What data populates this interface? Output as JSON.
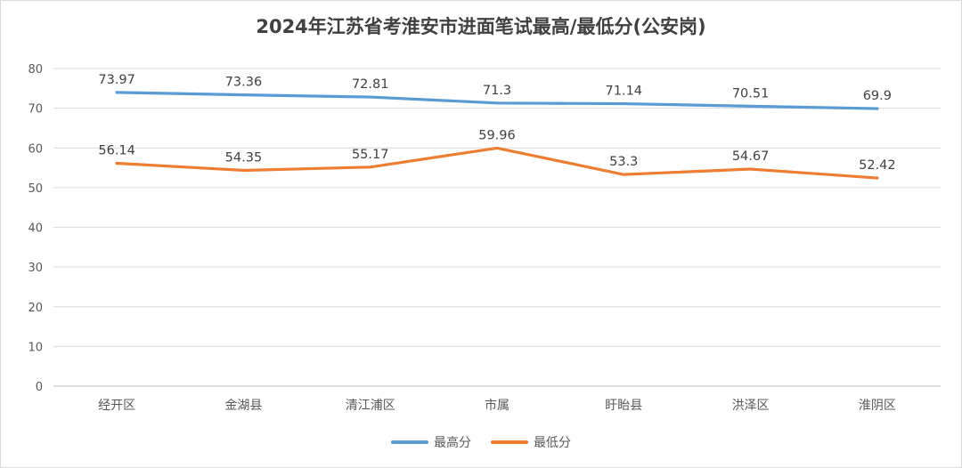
{
  "chart_data": {
    "type": "line",
    "title": "2024年江苏省考淮安市进面笔试最高/最低分(公安岗)",
    "categories": [
      "经开区",
      "金湖县",
      "清江浦区",
      "市属",
      "盱眙县",
      "洪泽区",
      "淮阴区"
    ],
    "series": [
      {
        "name": "最高分",
        "color": "#5b9bd5",
        "values": [
          73.97,
          73.36,
          72.81,
          71.3,
          71.14,
          70.51,
          69.9
        ],
        "labels": [
          "73.97",
          "73.36",
          "72.81",
          "71.3",
          "71.14",
          "70.51",
          "69.9"
        ]
      },
      {
        "name": "最低分",
        "color": "#ed7d31",
        "values": [
          56.14,
          54.35,
          55.17,
          59.96,
          53.3,
          54.67,
          52.42
        ],
        "labels": [
          "56.14",
          "54.35",
          "55.17",
          "59.96",
          "53.3",
          "54.67",
          "52.42"
        ]
      }
    ],
    "ylim": [
      0,
      80
    ],
    "yticks": [
      "0",
      "10",
      "20",
      "30",
      "40",
      "50",
      "60",
      "70",
      "80"
    ],
    "grid": true,
    "legend_position": "bottom",
    "data_labels": true
  }
}
